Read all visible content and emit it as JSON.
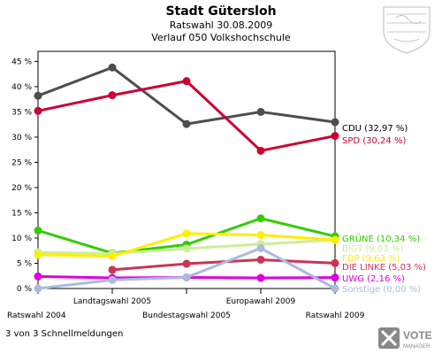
{
  "chart_data": {
    "type": "line",
    "title": "Stadt Gütersloh",
    "subtitle": "Ratswahl 30.08.2009",
    "subtitle2": "Verlauf 050 Volkshochschule",
    "categories": [
      "Ratswahl 2004",
      "Landtagswahl 2005",
      "Bundestagswahl 2005",
      "Europawahl 2009",
      "Ratswahl 2009"
    ],
    "yticks": [
      "0 %",
      "5 %",
      "10 %",
      "15 %",
      "20 %",
      "25 %",
      "30 %",
      "35 %",
      "40 %",
      "45 %"
    ],
    "ylim": [
      0,
      47
    ],
    "grid": false,
    "series": [
      {
        "name": "CDU",
        "label": "CDU (32,97 %)",
        "color": "#4d4d4d",
        "label_color": "#000000",
        "values": [
          38.2,
          43.8,
          32.6,
          35.0,
          32.97
        ]
      },
      {
        "name": "SPD",
        "label": "SPD (30,24 %)",
        "color": "#cc0033",
        "label_color": "#cc0033",
        "values": [
          35.2,
          38.3,
          41.1,
          27.3,
          30.24
        ]
      },
      {
        "name": "GRÜNE",
        "label": "GRÜNE (10,34 %)",
        "color": "#33cc00",
        "label_color": "#33cc00",
        "values": [
          11.5,
          7.0,
          8.7,
          13.9,
          10.34
        ]
      },
      {
        "name": "BIGT",
        "label": "BIGT (9,63 %)",
        "color": "#ccee99",
        "label_color": "#ccee99",
        "values": [
          7.2,
          6.9,
          7.9,
          8.8,
          9.63
        ]
      },
      {
        "name": "FDP",
        "label": "FDP (9,63 %)",
        "color": "#ffee00",
        "label_color": "#ffee00",
        "values": [
          6.7,
          6.4,
          10.9,
          10.6,
          9.63
        ]
      },
      {
        "name": "DIE LINKE",
        "label": "DIE LINKE (5,03 %)",
        "color": "#cc3355",
        "label_color": "#cc3355",
        "values": [
          null,
          3.7,
          4.9,
          5.7,
          5.03
        ]
      },
      {
        "name": "UWG",
        "label": "UWG (2,16 %)",
        "color": "#dd00dd",
        "label_color": "#dd00dd",
        "values": [
          2.4,
          2.1,
          2.2,
          2.1,
          2.16
        ]
      },
      {
        "name": "Sonstige",
        "label": "Sonstige (0,00 %)",
        "color": "#aabbdd",
        "label_color": "#aabbdd",
        "values": [
          0.0,
          1.7,
          2.2,
          8.0,
          0.0
        ]
      }
    ]
  },
  "footer": {
    "text": "3 von 3 Schnellmeldungen",
    "logo_text": "VOTE",
    "logo_sub": "MANAGER"
  },
  "colors": {
    "frame": "#000000",
    "emblem": "#bbbbbb",
    "logo": "#888888"
  }
}
